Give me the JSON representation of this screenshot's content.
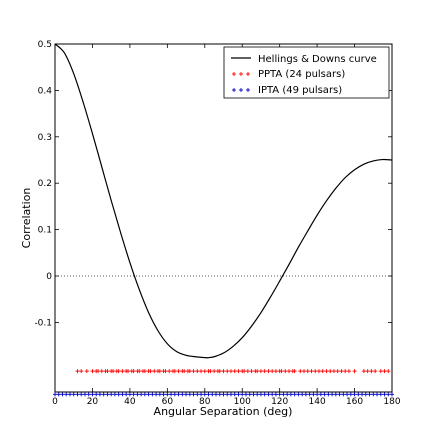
{
  "chart_data": {
    "type": "line",
    "title": "",
    "xlabel": "Angular Separation (deg)",
    "ylabel": "Correlation",
    "xlim": [
      0,
      180
    ],
    "ylim": [
      -0.25,
      0.5
    ],
    "xticks": [
      0,
      20,
      40,
      60,
      80,
      100,
      120,
      140,
      160,
      180
    ],
    "yticks": [
      0.5,
      0.4,
      0.3,
      0.2,
      0.1,
      0,
      -0.1
    ],
    "ytick_labels": [
      "0.5",
      "0.4",
      "0.3",
      "0.2",
      "0.1",
      "0",
      "-0.1"
    ],
    "grid": false,
    "zero_line": {
      "y": 0,
      "style": "dotted",
      "color": "#555555"
    },
    "legend": {
      "placement": "top-right",
      "entries": [
        {
          "label": "Hellings & Downs curve",
          "marker": "line",
          "color": "#000000"
        },
        {
          "label": "PPTA (24 pulsars)",
          "marker": "plus",
          "color": "#ff0000"
        },
        {
          "label": "IPTA (49 pulsars)",
          "marker": "plus",
          "color": "#0000cc"
        }
      ]
    },
    "series": [
      {
        "name": "Hellings & Downs curve",
        "kind": "curve",
        "color": "#000000",
        "x": [
          0,
          5,
          10,
          15,
          20,
          25,
          30,
          35,
          40,
          45,
          50,
          55,
          60,
          65,
          70,
          75,
          80,
          82,
          85,
          90,
          95,
          100,
          105,
          110,
          115,
          120,
          125,
          130,
          135,
          140,
          145,
          150,
          155,
          160,
          165,
          170,
          175,
          180
        ],
        "y": [
          0.5,
          0.481,
          0.436,
          0.375,
          0.307,
          0.235,
          0.163,
          0.094,
          0.029,
          -0.029,
          -0.079,
          -0.118,
          -0.146,
          -0.163,
          -0.171,
          -0.174,
          -0.176,
          -0.176,
          -0.174,
          -0.166,
          -0.152,
          -0.133,
          -0.108,
          -0.079,
          -0.046,
          -0.011,
          0.025,
          0.062,
          0.097,
          0.131,
          0.162,
          0.189,
          0.212,
          0.229,
          0.241,
          0.248,
          0.251,
          0.25
        ]
      },
      {
        "name": "PPTA (24 pulsars)",
        "kind": "rug",
        "color": "#ff0000",
        "y": -0.205,
        "x": [
          12,
          14,
          17,
          20,
          22,
          23,
          25,
          27,
          28,
          30,
          31,
          33,
          34,
          36,
          38,
          39,
          41,
          42,
          44,
          45,
          47,
          48,
          50,
          51,
          53,
          55,
          56,
          58,
          59,
          61,
          63,
          64,
          66,
          68,
          69,
          71,
          72,
          74,
          76,
          78,
          80,
          82,
          83,
          85,
          87,
          88,
          90,
          92,
          94,
          96,
          98,
          100,
          101,
          103,
          105,
          107,
          108,
          110,
          112,
          114,
          116,
          118,
          120,
          121,
          123,
          125,
          127,
          128,
          131,
          133,
          135,
          137,
          139,
          141,
          143,
          145,
          147,
          149,
          151,
          153,
          155,
          157,
          160,
          165,
          167,
          169,
          171,
          174,
          176,
          178
        ]
      },
      {
        "name": "IPTA (49 pulsars)",
        "kind": "rug",
        "color": "#0000cc",
        "y": -0.255,
        "x": [
          0,
          2,
          4,
          6,
          8,
          10,
          12,
          14,
          16,
          18,
          20,
          22,
          24,
          26,
          28,
          30,
          32,
          34,
          36,
          38,
          40,
          42,
          44,
          46,
          48,
          50,
          52,
          54,
          56,
          58,
          60,
          62,
          64,
          66,
          68,
          70,
          72,
          74,
          76,
          78,
          80,
          82,
          84,
          86,
          88,
          90,
          92,
          94,
          96,
          98,
          100,
          102,
          104,
          106,
          108,
          110,
          112,
          114,
          116,
          118,
          120,
          122,
          124,
          126,
          128,
          130,
          132,
          134,
          136,
          138,
          140,
          142,
          144,
          146,
          148,
          150,
          152,
          154,
          156,
          158,
          160,
          162,
          164,
          166,
          168,
          170,
          172,
          174,
          176,
          178,
          180
        ]
      }
    ]
  }
}
